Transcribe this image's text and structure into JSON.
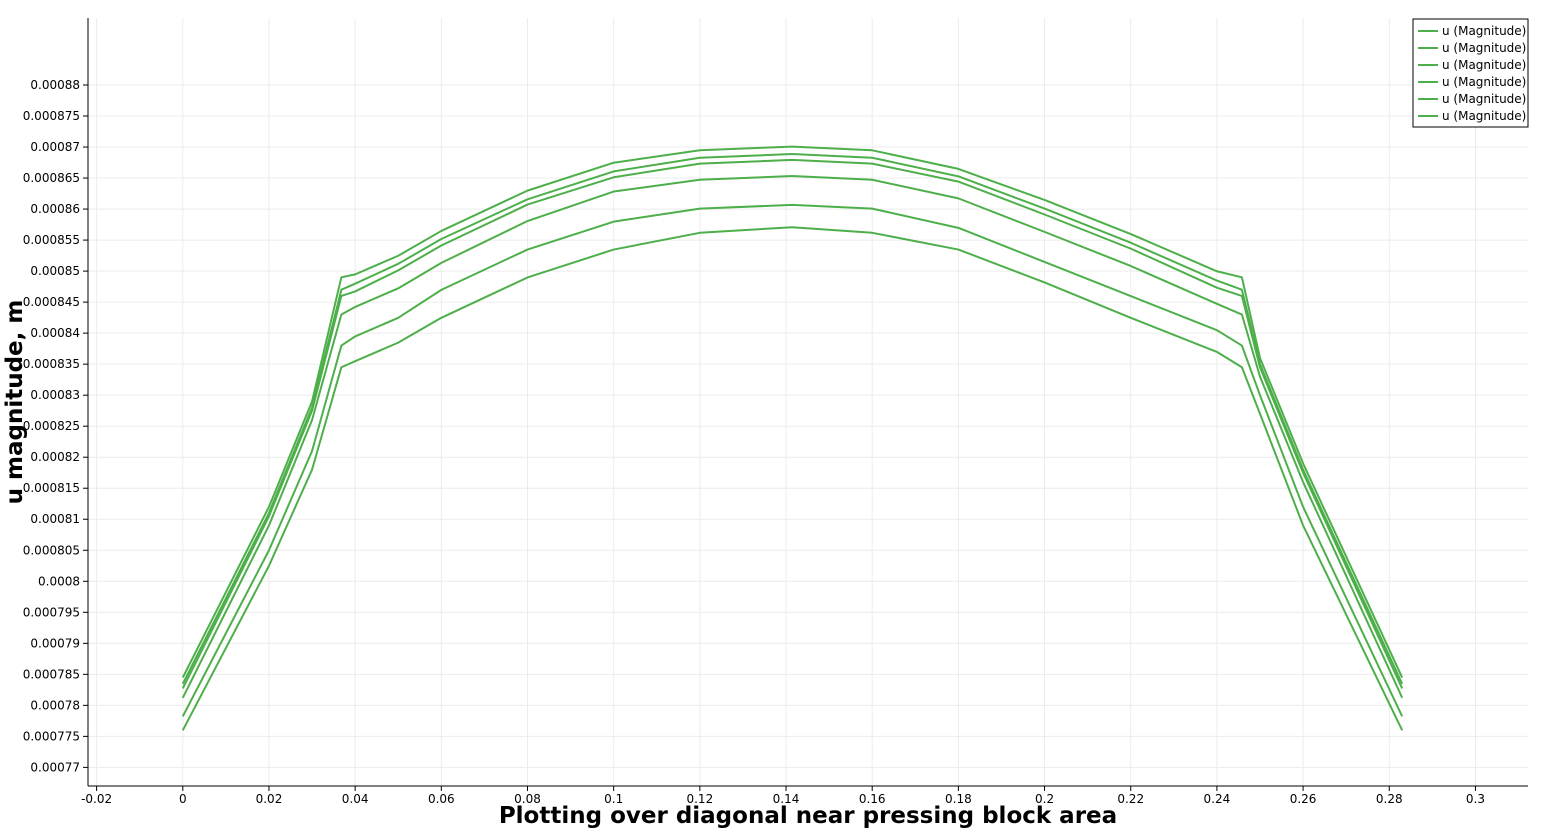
{
  "chart_data": {
    "type": "line",
    "xlabel": "Plotting over diagonal near pressing block area",
    "ylabel": "u magnitude, m",
    "xlim": [
      -0.022,
      0.3122
    ],
    "ylim": [
      0.000767,
      0.0008908
    ],
    "x_ticks": [
      "-0.02",
      "0",
      "0.02",
      "0.04",
      "0.06",
      "0.08",
      "0.1",
      "0.12",
      "0.14",
      "0.16",
      "0.18",
      "0.2",
      "0.22",
      "0.24",
      "0.26",
      "0.28",
      "0.3"
    ],
    "y_ticks": [
      "0.00077",
      "0.000775",
      "0.00078",
      "0.000785",
      "0.00079",
      "0.000795",
      "0.0008",
      "0.000805",
      "0.00081",
      "0.000815",
      "0.00082",
      "0.000825",
      "0.00083",
      "0.000835",
      "0.00084",
      "0.000845",
      "0.00085",
      "0.000855",
      "0.00086",
      "0.000865",
      "0.00087",
      "0.000875",
      "0.00088"
    ],
    "grid": true,
    "legend_position": "top-right",
    "line_color": "#4daf4a",
    "series": [
      {
        "name": "u (Magnitude)",
        "points": [
          [
            0.0,
            0.000784474
          ],
          [
            0.02,
            0.000812
          ],
          [
            0.03,
            0.000829
          ],
          [
            0.0368,
            0.000849
          ],
          [
            0.04,
            0.000849474
          ],
          [
            0.05,
            0.000852474
          ],
          [
            0.06,
            0.000856474
          ],
          [
            0.08,
            0.000862974
          ],
          [
            0.1,
            0.000867474
          ],
          [
            0.12,
            0.000869474
          ],
          [
            0.1414,
            0.000870074
          ],
          [
            0.16,
            0.000869474
          ],
          [
            0.18,
            0.000866474
          ],
          [
            0.2,
            0.000861474
          ],
          [
            0.22,
            0.000855974
          ],
          [
            0.24,
            0.000849974
          ],
          [
            0.2458,
            0.000849
          ],
          [
            0.25,
            0.000836
          ],
          [
            0.26,
            0.000819
          ],
          [
            0.283,
            0.000784474
          ]
        ]
      },
      {
        "name": "u (Magnitude)",
        "points": [
          [
            0.0,
            0.000783474
          ],
          [
            0.02,
            0.000811
          ],
          [
            0.03,
            0.000828
          ],
          [
            0.0368,
            0.000847
          ],
          [
            0.04,
            0.000847974
          ],
          [
            0.05,
            0.000851174
          ],
          [
            0.06,
            0.000855174
          ],
          [
            0.08,
            0.000861574
          ],
          [
            0.1,
            0.000866074
          ],
          [
            0.12,
            0.000868274
          ],
          [
            0.1414,
            0.000868874
          ],
          [
            0.16,
            0.000868274
          ],
          [
            0.18,
            0.000865274
          ],
          [
            0.2,
            0.000860074
          ],
          [
            0.22,
            0.000854574
          ],
          [
            0.24,
            0.000848474
          ],
          [
            0.2458,
            0.000847
          ],
          [
            0.25,
            0.000835
          ],
          [
            0.26,
            0.000818
          ],
          [
            0.283,
            0.000783474
          ]
        ]
      },
      {
        "name": "u (Magnitude)",
        "points": [
          [
            0.0,
            0.000782724
          ],
          [
            0.02,
            0.0008105
          ],
          [
            0.03,
            0.0008275
          ],
          [
            0.0368,
            0.000846
          ],
          [
            0.04,
            0.000846724
          ],
          [
            0.05,
            0.000850124
          ],
          [
            0.06,
            0.000854124
          ],
          [
            0.08,
            0.000860724
          ],
          [
            0.1,
            0.000865124
          ],
          [
            0.12,
            0.000867324
          ],
          [
            0.1414,
            0.000867924
          ],
          [
            0.16,
            0.000867324
          ],
          [
            0.18,
            0.000864424
          ],
          [
            0.2,
            0.000859124
          ],
          [
            0.22,
            0.000853624
          ],
          [
            0.24,
            0.000847324
          ],
          [
            0.2458,
            0.000846
          ],
          [
            0.25,
            0.0008345
          ],
          [
            0.26,
            0.0008175
          ],
          [
            0.283,
            0.000782724
          ]
        ]
      },
      {
        "name": "u (Magnitude)",
        "points": [
          [
            0.0,
            0.000781224
          ],
          [
            0.02,
            0.000809
          ],
          [
            0.03,
            0.000826
          ],
          [
            0.0368,
            0.000843
          ],
          [
            0.04,
            0.000844224
          ],
          [
            0.05,
            0.000847224
          ],
          [
            0.06,
            0.000851324
          ],
          [
            0.08,
            0.000858074
          ],
          [
            0.1,
            0.000862824
          ],
          [
            0.12,
            0.000864724
          ],
          [
            0.1414,
            0.000865324
          ],
          [
            0.16,
            0.000864724
          ],
          [
            0.18,
            0.000861724
          ],
          [
            0.2,
            0.000856324
          ],
          [
            0.22,
            0.000850824
          ],
          [
            0.24,
            0.000844724
          ],
          [
            0.2458,
            0.000843
          ],
          [
            0.25,
            0.000833
          ],
          [
            0.26,
            0.000816
          ],
          [
            0.283,
            0.000781224
          ]
        ]
      },
      {
        "name": "u (Magnitude)",
        "points": [
          [
            0.0,
            0.000778224
          ],
          [
            0.02,
            0.000805
          ],
          [
            0.03,
            0.000821
          ],
          [
            0.0368,
            0.000838
          ],
          [
            0.04,
            0.000839474
          ],
          [
            0.05,
            0.000842474
          ],
          [
            0.06,
            0.000846974
          ],
          [
            0.08,
            0.000853474
          ],
          [
            0.1,
            0.000857974
          ],
          [
            0.12,
            0.000860074
          ],
          [
            0.1414,
            0.000860674
          ],
          [
            0.16,
            0.000860074
          ],
          [
            0.18,
            0.000856974
          ],
          [
            0.2,
            0.000851474
          ],
          [
            0.22,
            0.000845974
          ],
          [
            0.24,
            0.000840474
          ],
          [
            0.2458,
            0.000838
          ],
          [
            0.25,
            0.00083
          ],
          [
            0.26,
            0.000812
          ],
          [
            0.283,
            0.000778224
          ]
        ]
      },
      {
        "name": "u (Magnitude)",
        "points": [
          [
            0.0,
            0.000775974
          ],
          [
            0.02,
            0.0008025
          ],
          [
            0.03,
            0.000818
          ],
          [
            0.0368,
            0.0008345
          ],
          [
            0.04,
            0.000835474
          ],
          [
            0.05,
            0.000838474
          ],
          [
            0.06,
            0.000842474
          ],
          [
            0.08,
            0.000848974
          ],
          [
            0.1,
            0.000853474
          ],
          [
            0.12,
            0.000856174
          ],
          [
            0.1414,
            0.000857074
          ],
          [
            0.16,
            0.000856174
          ],
          [
            0.18,
            0.000853474
          ],
          [
            0.2,
            0.000848174
          ],
          [
            0.22,
            0.000842474
          ],
          [
            0.24,
            0.000836974
          ],
          [
            0.2458,
            0.0008345
          ],
          [
            0.25,
            0.000827
          ],
          [
            0.26,
            0.000809
          ],
          [
            0.283,
            0.000775974
          ]
        ]
      }
    ]
  }
}
